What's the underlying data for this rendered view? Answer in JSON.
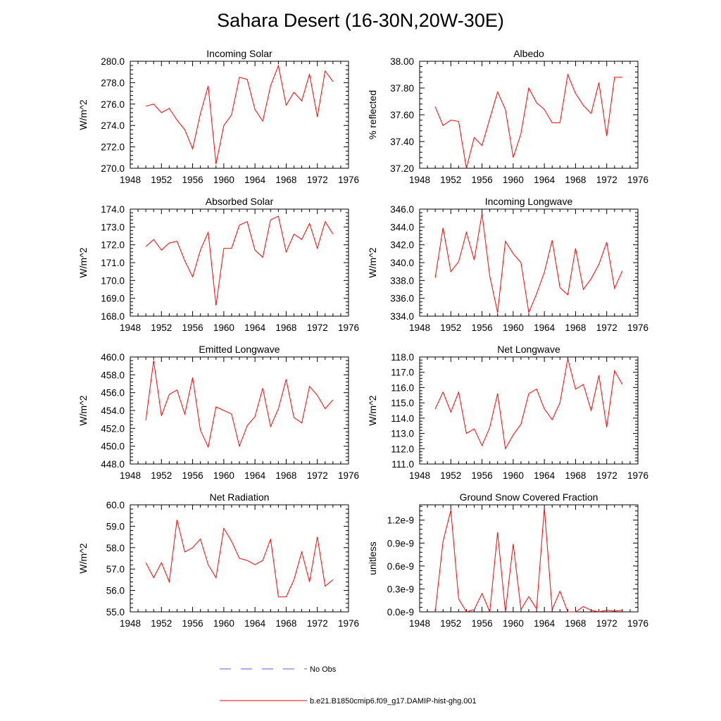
{
  "title": "Sahara Desert (16-30N,20W-30E)",
  "legend": {
    "no_obs": {
      "label": "No Obs",
      "color": "#5a5aff"
    },
    "model": {
      "label": "b.e21.B1850cmip6.f09_g17.DAMIP-hist-ghg.001",
      "color": "#ff0000"
    }
  },
  "chart_data": [
    {
      "type": "line",
      "title": "Incoming Solar",
      "ylabel": "W/m^2",
      "xlim": [
        1948,
        1976
      ],
      "xticks": [
        "1948",
        "1952",
        "1956",
        "1960",
        "1964",
        "1968",
        "1972",
        "1976"
      ],
      "ylim": [
        270,
        280
      ],
      "yticks": [
        "270.0",
        "272.0",
        "274.0",
        "276.0",
        "278.0",
        "280.0"
      ],
      "x": [
        1950,
        1951,
        1952,
        1953,
        1954,
        1955,
        1956,
        1957,
        1958,
        1959,
        1960,
        1961,
        1962,
        1963,
        1964,
        1965,
        1966,
        1967,
        1968,
        1969,
        1970,
        1971,
        1972,
        1973,
        1974
      ],
      "series": [
        {
          "values": [
            275.8,
            276.0,
            275.2,
            275.6,
            274.5,
            273.6,
            271.8,
            275.1,
            277.7,
            270.4,
            274.0,
            275.0,
            278.5,
            278.3,
            275.5,
            274.4,
            277.7,
            279.6,
            275.9,
            277.1,
            276.3,
            278.8,
            274.8,
            279.1,
            278.1
          ]
        }
      ]
    },
    {
      "type": "line",
      "title": "Albedo",
      "ylabel": "% reflected",
      "xlim": [
        1948,
        1976
      ],
      "xticks": [
        "1948",
        "1952",
        "1956",
        "1960",
        "1964",
        "1968",
        "1972",
        "1976"
      ],
      "ylim": [
        37.2,
        38.0
      ],
      "yticks": [
        "37.20",
        "37.40",
        "37.60",
        "37.80",
        "38.00"
      ],
      "x": [
        1950,
        1951,
        1952,
        1953,
        1954,
        1955,
        1956,
        1957,
        1958,
        1959,
        1960,
        1961,
        1962,
        1963,
        1964,
        1965,
        1966,
        1967,
        1968,
        1969,
        1970,
        1971,
        1972,
        1973,
        1974
      ],
      "series": [
        {
          "values": [
            37.66,
            37.52,
            37.56,
            37.55,
            37.2,
            37.43,
            37.37,
            37.57,
            37.77,
            37.64,
            37.28,
            37.46,
            37.8,
            37.69,
            37.64,
            37.54,
            37.54,
            37.9,
            37.76,
            37.67,
            37.61,
            37.84,
            37.44,
            37.88,
            37.88
          ]
        }
      ]
    },
    {
      "type": "line",
      "title": "Absorbed Solar",
      "ylabel": "W/m^2",
      "xlim": [
        1948,
        1976
      ],
      "xticks": [
        "1948",
        "1952",
        "1956",
        "1960",
        "1964",
        "1968",
        "1972",
        "1976"
      ],
      "ylim": [
        168,
        174
      ],
      "yticks": [
        "168.0",
        "169.0",
        "170.0",
        "171.0",
        "172.0",
        "173.0",
        "174.0"
      ],
      "x": [
        1950,
        1951,
        1952,
        1953,
        1954,
        1955,
        1956,
        1957,
        1958,
        1959,
        1960,
        1961,
        1962,
        1963,
        1964,
        1965,
        1966,
        1967,
        1968,
        1969,
        1970,
        1971,
        1972,
        1973,
        1974
      ],
      "series": [
        {
          "values": [
            171.9,
            172.3,
            171.7,
            172.1,
            172.2,
            171.1,
            170.2,
            171.7,
            172.7,
            168.6,
            171.8,
            171.8,
            173.1,
            173.3,
            171.7,
            171.3,
            173.4,
            173.6,
            171.6,
            172.6,
            172.3,
            173.2,
            171.8,
            173.3,
            172.6
          ]
        }
      ]
    },
    {
      "type": "line",
      "title": "Incoming Longwave",
      "ylabel": "W/m^2",
      "xlim": [
        1948,
        1976
      ],
      "xticks": [
        "1948",
        "1952",
        "1956",
        "1960",
        "1964",
        "1968",
        "1972",
        "1976"
      ],
      "ylim": [
        334,
        346
      ],
      "yticks": [
        "334.0",
        "336.0",
        "338.0",
        "340.0",
        "342.0",
        "344.0",
        "346.0"
      ],
      "x": [
        1950,
        1951,
        1952,
        1953,
        1954,
        1955,
        1956,
        1957,
        1958,
        1959,
        1960,
        1961,
        1962,
        1963,
        1964,
        1965,
        1966,
        1967,
        1968,
        1969,
        1970,
        1971,
        1972,
        1973,
        1974
      ],
      "series": [
        {
          "values": [
            338.3,
            343.9,
            339.0,
            340.1,
            343.4,
            340.3,
            345.5,
            338.5,
            334.4,
            342.4,
            341.0,
            340.0,
            334.4,
            336.5,
            338.9,
            342.5,
            337.2,
            336.4,
            341.6,
            337.0,
            338.2,
            339.8,
            342.3,
            337.1,
            339.1
          ]
        }
      ]
    },
    {
      "type": "line",
      "title": "Emitted Longwave",
      "ylabel": "W/m^2",
      "xlim": [
        1948,
        1976
      ],
      "xticks": [
        "1948",
        "1952",
        "1956",
        "1960",
        "1964",
        "1968",
        "1972",
        "1976"
      ],
      "ylim": [
        448,
        460
      ],
      "yticks": [
        "448.0",
        "450.0",
        "452.0",
        "454.0",
        "456.0",
        "458.0",
        "460.0"
      ],
      "x": [
        1950,
        1951,
        1952,
        1953,
        1954,
        1955,
        1956,
        1957,
        1958,
        1959,
        1960,
        1961,
        1962,
        1963,
        1964,
        1965,
        1966,
        1967,
        1968,
        1969,
        1970,
        1971,
        1972,
        1973,
        1974
      ],
      "series": [
        {
          "values": [
            452.9,
            459.6,
            453.4,
            455.8,
            456.3,
            453.6,
            457.7,
            451.8,
            449.9,
            454.4,
            454.0,
            453.6,
            450.0,
            452.3,
            453.3,
            456.5,
            452.2,
            454.2,
            457.5,
            453.2,
            452.6,
            456.7,
            455.7,
            454.2,
            455.2
          ]
        }
      ]
    },
    {
      "type": "line",
      "title": "Net Longwave",
      "ylabel": "W/m^2",
      "xlim": [
        1948,
        1976
      ],
      "xticks": [
        "1948",
        "1952",
        "1956",
        "1960",
        "1964",
        "1968",
        "1972",
        "1976"
      ],
      "ylim": [
        111,
        118
      ],
      "yticks": [
        "111.0",
        "112.0",
        "113.0",
        "114.0",
        "115.0",
        "116.0",
        "117.0",
        "118.0"
      ],
      "x": [
        1950,
        1951,
        1952,
        1953,
        1954,
        1955,
        1956,
        1957,
        1958,
        1959,
        1960,
        1961,
        1962,
        1963,
        1964,
        1965,
        1966,
        1967,
        1968,
        1969,
        1970,
        1971,
        1972,
        1973,
        1974
      ],
      "series": [
        {
          "values": [
            114.6,
            115.7,
            114.4,
            115.7,
            113.0,
            113.3,
            112.2,
            113.4,
            115.6,
            112.0,
            112.9,
            113.6,
            115.6,
            115.9,
            114.6,
            113.9,
            115.0,
            117.9,
            115.9,
            116.2,
            114.5,
            116.8,
            113.4,
            117.1,
            116.2
          ]
        }
      ]
    },
    {
      "type": "line",
      "title": "Net Radiation",
      "ylabel": "W/m^2",
      "xlim": [
        1948,
        1976
      ],
      "xticks": [
        "1948",
        "1952",
        "1956",
        "1960",
        "1964",
        "1968",
        "1972",
        "1976"
      ],
      "ylim": [
        55,
        60
      ],
      "yticks": [
        "55.0",
        "56.0",
        "57.0",
        "58.0",
        "59.0",
        "60.0"
      ],
      "x": [
        1950,
        1951,
        1952,
        1953,
        1954,
        1955,
        1956,
        1957,
        1958,
        1959,
        1960,
        1961,
        1962,
        1963,
        1964,
        1965,
        1966,
        1967,
        1968,
        1969,
        1970,
        1971,
        1972,
        1973,
        1974
      ],
      "series": [
        {
          "values": [
            57.3,
            56.6,
            57.3,
            56.4,
            59.3,
            57.8,
            58.0,
            58.4,
            57.2,
            56.6,
            58.9,
            58.3,
            57.5,
            57.4,
            57.2,
            57.4,
            58.4,
            55.7,
            55.7,
            56.5,
            57.8,
            56.4,
            58.5,
            56.2,
            56.5
          ]
        }
      ]
    },
    {
      "type": "line",
      "title": "Ground Snow Covered Fraction",
      "ylabel": "unitless",
      "xlim": [
        1948,
        1976
      ],
      "xticks": [
        "1948",
        "1952",
        "1956",
        "1960",
        "1964",
        "1968",
        "1972",
        "1976"
      ],
      "ylim": [
        0,
        1.4
      ],
      "yticks": [
        "0.0e-9",
        "0.3e-9",
        "0.6e-9",
        "0.9e-9",
        "1.2e-9"
      ],
      "ytick_values": [
        0,
        0.3,
        0.6,
        0.9,
        1.2
      ],
      "y_unit_note": "values in units of 1e-9",
      "x": [
        1950,
        1951,
        1952,
        1953,
        1954,
        1955,
        1956,
        1957,
        1958,
        1959,
        1960,
        1961,
        1962,
        1963,
        1964,
        1965,
        1966,
        1967,
        1968,
        1969,
        1970,
        1971,
        1972,
        1973,
        1974
      ],
      "series": [
        {
          "values": [
            0.0,
            0.92,
            1.33,
            0.17,
            0.0,
            0.03,
            0.24,
            0.0,
            1.04,
            0.0,
            0.89,
            0.03,
            0.2,
            0.04,
            1.36,
            0.03,
            0.27,
            0.0,
            0.0,
            0.07,
            0.02,
            0.0,
            0.02,
            0.01,
            0.02
          ]
        }
      ]
    }
  ]
}
